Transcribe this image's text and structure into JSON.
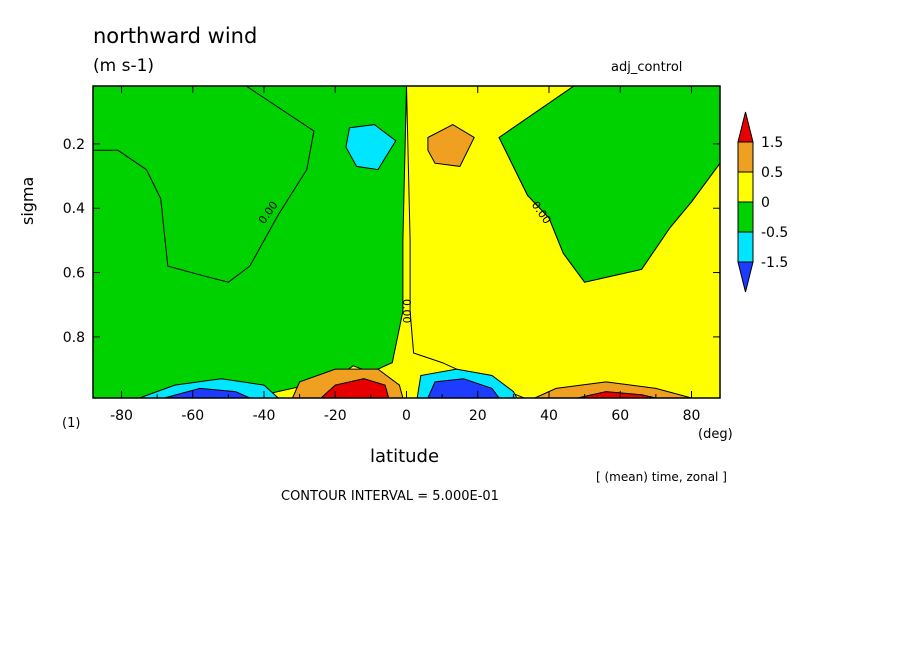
{
  "chart_data": {
    "type": "heatmap",
    "title": "northward wind",
    "units": "(m s-1)",
    "run_name": "adj_control",
    "xlabel": "latitude",
    "x_unit": "(deg)",
    "ylabel": "sigma",
    "level_label": "(1)",
    "averaging_note": "[ (mean) time, zonal ]",
    "contour_interval_text": "CONTOUR INTERVAL = 5.000E-01",
    "xlim": [
      -88,
      88
    ],
    "ylim": [
      0.02,
      0.99
    ],
    "y_inverted": true,
    "x_ticks": [
      -80,
      -60,
      -40,
      -20,
      0,
      20,
      40,
      60,
      80
    ],
    "y_ticks": [
      0.2,
      0.4,
      0.6,
      0.8
    ],
    "colorbar": {
      "labels": [
        "1.5",
        "0.5",
        "0",
        "-0.5",
        "-1.5"
      ],
      "colors": {
        "gt_1_5": "#e60000",
        "p1_to_1_5": "#f0a020",
        "p0_to_1": "#ffff00",
        "n1_to_0": "#00d200",
        "n1_5_to_n1": "#00e6ff",
        "lt_n1_5": "#1e3cff"
      }
    },
    "contour_labels": [
      {
        "text": "0.00",
        "lat": -38,
        "sigma": 0.42
      },
      {
        "text": "0.00",
        "lat": 37,
        "sigma": 0.42
      },
      {
        "text": "0.00",
        "lat": -1,
        "sigma": 0.72
      }
    ],
    "regions": {
      "green_nh_top": [
        [
          -88,
          0.02
        ],
        [
          -45,
          0.02
        ],
        [
          -26,
          0.16
        ],
        [
          -28,
          0.28
        ],
        [
          -36,
          0.42
        ],
        [
          -44,
          0.58
        ],
        [
          -50,
          0.63
        ],
        [
          -57,
          0.61
        ],
        [
          -67,
          0.58
        ],
        [
          -69,
          0.37
        ],
        [
          -73,
          0.28
        ],
        [
          -81,
          0.22
        ],
        [
          -88,
          0.22
        ]
      ],
      "green_sh_top": [
        [
          88,
          0.02
        ],
        [
          47,
          0.02
        ],
        [
          26,
          0.18
        ],
        [
          34,
          0.36
        ],
        [
          40,
          0.43
        ],
        [
          44,
          0.54
        ],
        [
          50,
          0.63
        ],
        [
          58,
          0.61
        ],
        [
          66,
          0.59
        ],
        [
          74,
          0.46
        ],
        [
          80,
          0.38
        ],
        [
          88,
          0.26
        ]
      ],
      "green_left_mid": [
        [
          -88,
          0.02
        ],
        [
          -88,
          0.99
        ],
        [
          -70,
          0.99
        ],
        [
          -55,
          0.96
        ],
        [
          -40,
          0.98
        ],
        [
          -20,
          0.93
        ],
        [
          -15,
          0.89
        ],
        [
          -10,
          0.91
        ],
        [
          -4,
          0.88
        ],
        [
          -1,
          0.72
        ],
        [
          -1,
          0.5
        ],
        [
          0,
          0.02
        ]
      ],
      "yellow_right_mid": [
        [
          0,
          0.02
        ],
        [
          47,
          0.02
        ],
        [
          26,
          0.18
        ],
        [
          34,
          0.36
        ],
        [
          40,
          0.43
        ],
        [
          44,
          0.54
        ],
        [
          50,
          0.63
        ],
        [
          58,
          0.61
        ],
        [
          66,
          0.59
        ],
        [
          74,
          0.46
        ],
        [
          80,
          0.38
        ],
        [
          88,
          0.26
        ],
        [
          88,
          0.99
        ],
        [
          33,
          0.99
        ],
        [
          22,
          0.94
        ],
        [
          10,
          0.88
        ],
        [
          2,
          0.85
        ],
        [
          1,
          0.72
        ],
        [
          1,
          0.5
        ],
        [
          0,
          0.02
        ]
      ],
      "cyan_blob_top": [
        [
          -16,
          0.15
        ],
        [
          -9,
          0.14
        ],
        [
          -3,
          0.19
        ],
        [
          -8,
          0.28
        ],
        [
          -14,
          0.27
        ],
        [
          -17,
          0.21
        ]
      ],
      "orange_blob_top": [
        [
          6,
          0.18
        ],
        [
          13,
          0.14
        ],
        [
          19,
          0.18
        ],
        [
          15,
          0.27
        ],
        [
          8,
          0.26
        ],
        [
          6,
          0.22
        ]
      ],
      "cyan_bottom_left": [
        [
          -75,
          0.99
        ],
        [
          -65,
          0.95
        ],
        [
          -52,
          0.93
        ],
        [
          -40,
          0.95
        ],
        [
          -36,
          0.99
        ]
      ],
      "blue_bottom_left": [
        [
          -68,
          0.99
        ],
        [
          -58,
          0.96
        ],
        [
          -48,
          0.97
        ],
        [
          -44,
          0.99
        ]
      ],
      "orange_bottom_left": [
        [
          -32,
          0.99
        ],
        [
          -30,
          0.94
        ],
        [
          -20,
          0.9
        ],
        [
          -8,
          0.9
        ],
        [
          -2,
          0.95
        ],
        [
          -1,
          0.99
        ]
      ],
      "red_bottom_left": [
        [
          -24,
          0.99
        ],
        [
          -20,
          0.95
        ],
        [
          -12,
          0.93
        ],
        [
          -6,
          0.95
        ],
        [
          -5,
          0.99
        ]
      ],
      "cyan_bottom_right": [
        [
          3,
          0.99
        ],
        [
          4,
          0.92
        ],
        [
          14,
          0.9
        ],
        [
          24,
          0.92
        ],
        [
          30,
          0.97
        ],
        [
          31,
          0.99
        ]
      ],
      "blue_bottom_right": [
        [
          6,
          0.99
        ],
        [
          8,
          0.94
        ],
        [
          16,
          0.93
        ],
        [
          24,
          0.96
        ],
        [
          26,
          0.99
        ]
      ],
      "orange_bottom_right": [
        [
          36,
          0.99
        ],
        [
          42,
          0.96
        ],
        [
          56,
          0.94
        ],
        [
          70,
          0.96
        ],
        [
          80,
          0.99
        ]
      ],
      "red_bottom_right": [
        [
          48,
          0.99
        ],
        [
          56,
          0.97
        ],
        [
          66,
          0.98
        ],
        [
          70,
          0.99
        ]
      ]
    }
  }
}
